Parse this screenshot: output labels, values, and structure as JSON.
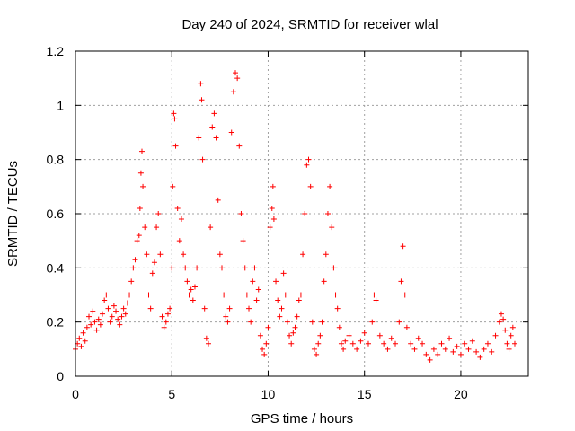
{
  "chart_data": {
    "type": "scatter",
    "title": "Day 240 of 2024, SRMTID for receiver wlal",
    "xlabel": "GPS time / hours",
    "ylabel": "SRMTID / TECUs",
    "xlim": [
      0,
      23.5
    ],
    "ylim": [
      0,
      1.2
    ],
    "xticks": [
      0,
      5,
      10,
      15,
      20
    ],
    "xtick_labels": [
      "0",
      "5",
      "10",
      "15",
      "20"
    ],
    "yticks": [
      0,
      0.2,
      0.4,
      0.6,
      0.8,
      1,
      1.2
    ],
    "ytick_labels": [
      "0",
      "0.2",
      "0.4",
      "0.6",
      "0.8",
      "1",
      "1.2"
    ],
    "grid": true,
    "marker": "+",
    "color": "#ff0000",
    "series": [
      {
        "name": "SRMTID",
        "points": [
          [
            0.0,
            0.1
          ],
          [
            0.1,
            0.12
          ],
          [
            0.2,
            0.14
          ],
          [
            0.3,
            0.11
          ],
          [
            0.4,
            0.16
          ],
          [
            0.5,
            0.13
          ],
          [
            0.6,
            0.18
          ],
          [
            0.7,
            0.22
          ],
          [
            0.8,
            0.19
          ],
          [
            0.9,
            0.24
          ],
          [
            1.0,
            0.2
          ],
          [
            1.1,
            0.17
          ],
          [
            1.2,
            0.21
          ],
          [
            1.3,
            0.19
          ],
          [
            1.4,
            0.23
          ],
          [
            1.5,
            0.28
          ],
          [
            1.6,
            0.3
          ],
          [
            1.7,
            0.25
          ],
          [
            1.8,
            0.2
          ],
          [
            1.9,
            0.22
          ],
          [
            2.0,
            0.26
          ],
          [
            2.1,
            0.24
          ],
          [
            2.2,
            0.21
          ],
          [
            2.3,
            0.19
          ],
          [
            2.4,
            0.22
          ],
          [
            2.5,
            0.25
          ],
          [
            2.6,
            0.23
          ],
          [
            2.7,
            0.27
          ],
          [
            2.8,
            0.3
          ],
          [
            2.9,
            0.35
          ],
          [
            3.0,
            0.4
          ],
          [
            3.1,
            0.43
          ],
          [
            3.2,
            0.5
          ],
          [
            3.3,
            0.52
          ],
          [
            3.35,
            0.62
          ],
          [
            3.4,
            0.75
          ],
          [
            3.45,
            0.83
          ],
          [
            3.5,
            0.7
          ],
          [
            3.6,
            0.55
          ],
          [
            3.7,
            0.45
          ],
          [
            3.8,
            0.3
          ],
          [
            3.9,
            0.25
          ],
          [
            4.0,
            0.38
          ],
          [
            4.1,
            0.42
          ],
          [
            4.2,
            0.55
          ],
          [
            4.3,
            0.6
          ],
          [
            4.4,
            0.45
          ],
          [
            4.5,
            0.22
          ],
          [
            4.6,
            0.18
          ],
          [
            4.7,
            0.2
          ],
          [
            4.8,
            0.23
          ],
          [
            4.9,
            0.25
          ],
          [
            5.0,
            0.4
          ],
          [
            5.05,
            0.7
          ],
          [
            5.1,
            0.97
          ],
          [
            5.15,
            0.95
          ],
          [
            5.2,
            0.85
          ],
          [
            5.3,
            0.62
          ],
          [
            5.4,
            0.5
          ],
          [
            5.5,
            0.58
          ],
          [
            5.6,
            0.45
          ],
          [
            5.7,
            0.4
          ],
          [
            5.8,
            0.35
          ],
          [
            5.9,
            0.3
          ],
          [
            6.0,
            0.32
          ],
          [
            6.1,
            0.28
          ],
          [
            6.2,
            0.33
          ],
          [
            6.3,
            0.4
          ],
          [
            6.4,
            0.88
          ],
          [
            6.5,
            1.08
          ],
          [
            6.55,
            1.02
          ],
          [
            6.6,
            0.8
          ],
          [
            6.7,
            0.25
          ],
          [
            6.8,
            0.14
          ],
          [
            6.9,
            0.12
          ],
          [
            7.0,
            0.55
          ],
          [
            7.1,
            0.92
          ],
          [
            7.2,
            0.97
          ],
          [
            7.3,
            0.88
          ],
          [
            7.4,
            0.65
          ],
          [
            7.5,
            0.45
          ],
          [
            7.6,
            0.4
          ],
          [
            7.7,
            0.3
          ],
          [
            7.8,
            0.22
          ],
          [
            7.9,
            0.2
          ],
          [
            8.0,
            0.25
          ],
          [
            8.1,
            0.9
          ],
          [
            8.2,
            1.05
          ],
          [
            8.3,
            1.12
          ],
          [
            8.4,
            1.1
          ],
          [
            8.5,
            0.85
          ],
          [
            8.6,
            0.6
          ],
          [
            8.7,
            0.5
          ],
          [
            8.8,
            0.4
          ],
          [
            8.9,
            0.3
          ],
          [
            9.0,
            0.25
          ],
          [
            9.1,
            0.2
          ],
          [
            9.2,
            0.35
          ],
          [
            9.3,
            0.4
          ],
          [
            9.4,
            0.28
          ],
          [
            9.5,
            0.32
          ],
          [
            9.6,
            0.15
          ],
          [
            9.7,
            0.1
          ],
          [
            9.8,
            0.08
          ],
          [
            9.9,
            0.12
          ],
          [
            10.0,
            0.18
          ],
          [
            10.1,
            0.55
          ],
          [
            10.2,
            0.62
          ],
          [
            10.25,
            0.7
          ],
          [
            10.3,
            0.58
          ],
          [
            10.4,
            0.35
          ],
          [
            10.5,
            0.28
          ],
          [
            10.6,
            0.22
          ],
          [
            10.7,
            0.25
          ],
          [
            10.8,
            0.38
          ],
          [
            10.9,
            0.3
          ],
          [
            11.0,
            0.2
          ],
          [
            11.1,
            0.15
          ],
          [
            11.2,
            0.12
          ],
          [
            11.3,
            0.16
          ],
          [
            11.4,
            0.18
          ],
          [
            11.5,
            0.22
          ],
          [
            11.6,
            0.28
          ],
          [
            11.7,
            0.3
          ],
          [
            11.8,
            0.45
          ],
          [
            11.9,
            0.6
          ],
          [
            12.0,
            0.78
          ],
          [
            12.1,
            0.8
          ],
          [
            12.2,
            0.7
          ],
          [
            12.3,
            0.2
          ],
          [
            12.4,
            0.1
          ],
          [
            12.5,
            0.08
          ],
          [
            12.6,
            0.12
          ],
          [
            12.7,
            0.15
          ],
          [
            12.8,
            0.2
          ],
          [
            12.9,
            0.35
          ],
          [
            13.0,
            0.45
          ],
          [
            13.1,
            0.6
          ],
          [
            13.2,
            0.7
          ],
          [
            13.3,
            0.55
          ],
          [
            13.4,
            0.4
          ],
          [
            13.5,
            0.3
          ],
          [
            13.6,
            0.25
          ],
          [
            13.7,
            0.18
          ],
          [
            13.8,
            0.12
          ],
          [
            13.9,
            0.1
          ],
          [
            14.0,
            0.13
          ],
          [
            14.2,
            0.15
          ],
          [
            14.4,
            0.12
          ],
          [
            14.6,
            0.1
          ],
          [
            14.8,
            0.13
          ],
          [
            15.0,
            0.16
          ],
          [
            15.2,
            0.12
          ],
          [
            15.4,
            0.2
          ],
          [
            15.5,
            0.3
          ],
          [
            15.6,
            0.28
          ],
          [
            15.8,
            0.15
          ],
          [
            16.0,
            0.12
          ],
          [
            16.2,
            0.1
          ],
          [
            16.4,
            0.14
          ],
          [
            16.6,
            0.12
          ],
          [
            16.8,
            0.2
          ],
          [
            16.9,
            0.35
          ],
          [
            17.0,
            0.48
          ],
          [
            17.1,
            0.3
          ],
          [
            17.2,
            0.18
          ],
          [
            17.4,
            0.12
          ],
          [
            17.6,
            0.1
          ],
          [
            17.8,
            0.14
          ],
          [
            18.0,
            0.12
          ],
          [
            18.2,
            0.08
          ],
          [
            18.4,
            0.06
          ],
          [
            18.6,
            0.1
          ],
          [
            18.8,
            0.08
          ],
          [
            19.0,
            0.12
          ],
          [
            19.2,
            0.1
          ],
          [
            19.4,
            0.14
          ],
          [
            19.6,
            0.09
          ],
          [
            19.8,
            0.11
          ],
          [
            20.0,
            0.08
          ],
          [
            20.2,
            0.12
          ],
          [
            20.4,
            0.1
          ],
          [
            20.6,
            0.13
          ],
          [
            20.8,
            0.09
          ],
          [
            21.0,
            0.07
          ],
          [
            21.2,
            0.1
          ],
          [
            21.4,
            0.12
          ],
          [
            21.6,
            0.09
          ],
          [
            21.8,
            0.15
          ],
          [
            22.0,
            0.2
          ],
          [
            22.1,
            0.23
          ],
          [
            22.2,
            0.21
          ],
          [
            22.3,
            0.17
          ],
          [
            22.4,
            0.12
          ],
          [
            22.5,
            0.1
          ],
          [
            22.6,
            0.15
          ],
          [
            22.7,
            0.18
          ],
          [
            22.8,
            0.12
          ]
        ]
      }
    ]
  }
}
